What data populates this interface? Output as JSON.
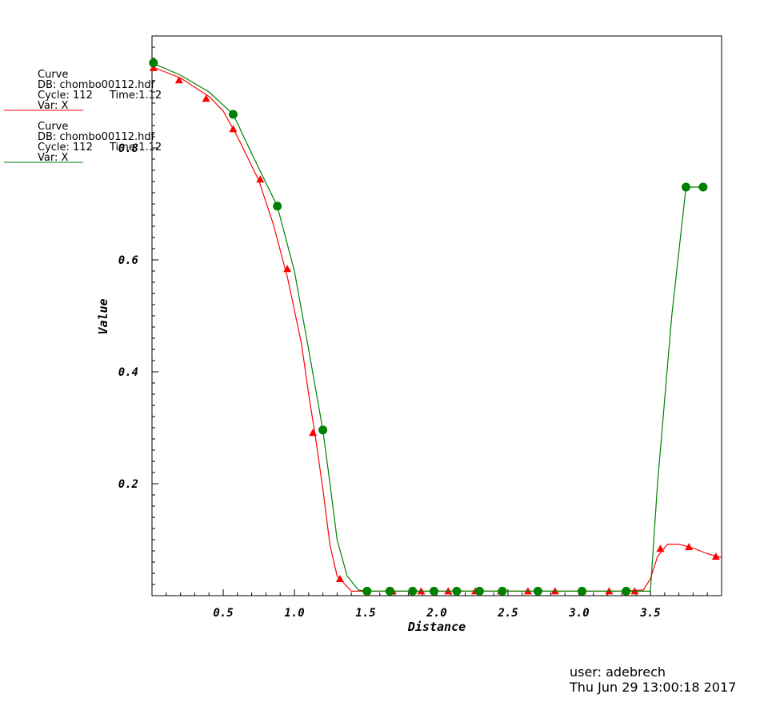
{
  "chart_data": {
    "type": "line",
    "xlabel": "Distance",
    "ylabel": "Value",
    "xlim": [
      0.0,
      4.0
    ],
    "ylim": [
      0.0,
      1.0
    ],
    "x_ticks": [
      0.5,
      1.0,
      1.5,
      2.0,
      2.5,
      3.0,
      3.5
    ],
    "x_tick_labels": [
      "0.5",
      "1.0",
      "1.5",
      "2.0",
      "2.5",
      "3.0",
      "3.5"
    ],
    "y_ticks": [
      0.2,
      0.4,
      0.6,
      0.8
    ],
    "y_tick_labels": [
      "0.2",
      "0.4",
      "0.6",
      "0.8"
    ],
    "grid": false,
    "legend_position": "top-left, outside plot",
    "series": [
      {
        "color": "#ff0000",
        "marker": "triangle",
        "legend": {
          "title": "Curve",
          "db": "DB: chombo00112.hdf",
          "cycle": "Cycle: 112",
          "time": "Time:1.12",
          "var": "Var: X"
        },
        "points": [
          [
            0.0,
            0.945
          ],
          [
            0.2,
            0.925
          ],
          [
            0.4,
            0.892
          ],
          [
            0.5,
            0.866
          ],
          [
            0.6,
            0.82
          ],
          [
            0.75,
            0.742
          ],
          [
            0.85,
            0.665
          ],
          [
            0.95,
            0.57
          ],
          [
            1.05,
            0.45
          ],
          [
            1.1,
            0.36
          ],
          [
            1.15,
            0.28
          ],
          [
            1.2,
            0.19
          ],
          [
            1.25,
            0.09
          ],
          [
            1.3,
            0.035
          ],
          [
            1.4,
            0.008
          ],
          [
            1.5,
            0.008
          ],
          [
            1.7,
            0.008
          ],
          [
            2.0,
            0.008
          ],
          [
            2.5,
            0.008
          ],
          [
            3.0,
            0.008
          ],
          [
            3.3,
            0.008
          ],
          [
            3.45,
            0.01
          ],
          [
            3.5,
            0.03
          ],
          [
            3.55,
            0.07
          ],
          [
            3.62,
            0.092
          ],
          [
            3.7,
            0.092
          ],
          [
            3.8,
            0.085
          ],
          [
            3.9,
            0.075
          ],
          [
            4.0,
            0.068
          ]
        ],
        "marker_x": [
          0.01,
          0.19,
          0.38,
          0.57,
          0.76,
          0.95,
          1.13,
          1.32,
          1.51,
          1.69,
          1.89,
          2.08,
          2.27,
          2.45,
          2.64,
          2.83,
          3.02,
          3.21,
          3.39,
          3.57,
          3.77,
          3.96
        ],
        "marker_y": [
          0.943,
          0.921,
          0.888,
          0.834,
          0.744,
          0.584,
          0.291,
          0.03,
          0.008,
          0.008,
          0.008,
          0.008,
          0.008,
          0.008,
          0.008,
          0.008,
          0.008,
          0.008,
          0.008,
          0.084,
          0.087,
          0.07
        ]
      },
      {
        "color": "#008000",
        "marker": "circle",
        "legend": {
          "title": "Curve",
          "db": "DB: chombo00112.hdf",
          "cycle": "Cycle: 112",
          "time": "Time:1.12",
          "var": "Var: X"
        },
        "points": [
          [
            0.0,
            0.952
          ],
          [
            0.2,
            0.93
          ],
          [
            0.4,
            0.9
          ],
          [
            0.57,
            0.86
          ],
          [
            0.7,
            0.79
          ],
          [
            0.88,
            0.696
          ],
          [
            1.0,
            0.58
          ],
          [
            1.1,
            0.44
          ],
          [
            1.2,
            0.296
          ],
          [
            1.25,
            0.2
          ],
          [
            1.3,
            0.1
          ],
          [
            1.37,
            0.035
          ],
          [
            1.45,
            0.01
          ],
          [
            1.51,
            0.008
          ],
          [
            2.0,
            0.008
          ],
          [
            2.5,
            0.008
          ],
          [
            3.0,
            0.008
          ],
          [
            3.5,
            0.008
          ],
          [
            3.55,
            0.2
          ],
          [
            3.65,
            0.5
          ],
          [
            3.75,
            0.73
          ],
          [
            3.87,
            0.73
          ]
        ],
        "marker_x": [
          0.01,
          0.57,
          0.88,
          1.2,
          1.51,
          1.67,
          1.83,
          1.98,
          2.14,
          2.3,
          2.46,
          2.71,
          3.02,
          3.33,
          3.75,
          3.87
        ],
        "marker_y": [
          0.952,
          0.86,
          0.696,
          0.296,
          0.008,
          0.008,
          0.008,
          0.008,
          0.008,
          0.008,
          0.008,
          0.008,
          0.008,
          0.008,
          0.73,
          0.73
        ]
      }
    ]
  },
  "footer": {
    "user": "user: adebrech",
    "date": "Thu Jun 29 13:00:18 2017"
  }
}
